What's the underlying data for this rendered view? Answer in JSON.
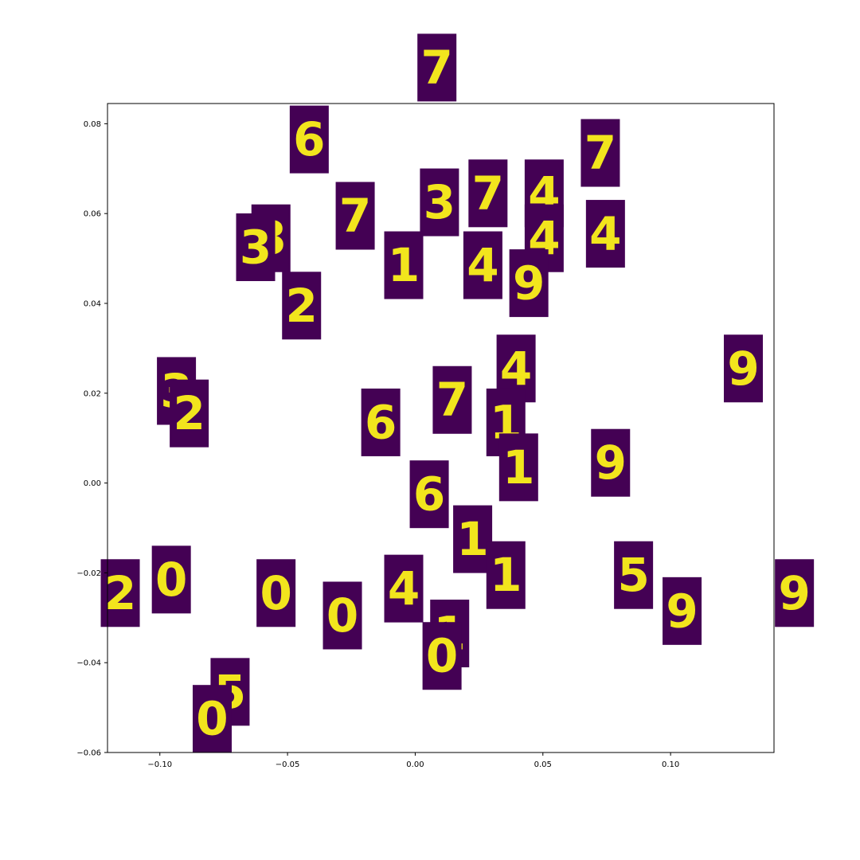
{
  "chart_data": {
    "type": "scatter",
    "title": "",
    "xlabel": "",
    "ylabel": "",
    "xlim": [
      -0.1205,
      0.1405
    ],
    "ylim": [
      -0.06,
      0.0845
    ],
    "grid": false,
    "x_ticks": [
      {
        "value": -0.1,
        "label": "−0.10"
      },
      {
        "value": -0.05,
        "label": "−0.05"
      },
      {
        "value": 0.0,
        "label": "0.00"
      },
      {
        "value": 0.05,
        "label": "0.05"
      },
      {
        "value": 0.1,
        "label": "0.10"
      }
    ],
    "y_ticks": [
      {
        "value": 0.08,
        "label": "0.08"
      },
      {
        "value": 0.06,
        "label": "0.06"
      },
      {
        "value": 0.04,
        "label": "0.04"
      },
      {
        "value": 0.02,
        "label": "0.02"
      },
      {
        "value": 0.0,
        "label": "0.00"
      },
      {
        "value": -0.02,
        "label": "−0.02"
      },
      {
        "value": -0.04,
        "label": "−0.04"
      },
      {
        "value": -0.06,
        "label": "−0.06"
      }
    ],
    "marker": "digit-image",
    "marker_colors": {
      "background": "#440154",
      "stroke": "#fde725"
    },
    "points": [
      {
        "x": 0.0085,
        "y": 0.0925,
        "label": "7"
      },
      {
        "x": -0.0415,
        "y": 0.0765,
        "label": "6"
      },
      {
        "x": 0.0285,
        "y": 0.0645,
        "label": "7"
      },
      {
        "x": 0.0505,
        "y": 0.0645,
        "label": "4"
      },
      {
        "x": 0.0725,
        "y": 0.0735,
        "label": "7"
      },
      {
        "x": 0.0095,
        "y": 0.0625,
        "label": "3"
      },
      {
        "x": -0.0235,
        "y": 0.0595,
        "label": "7"
      },
      {
        "x": -0.0565,
        "y": 0.0545,
        "label": "3"
      },
      {
        "x": -0.0625,
        "y": 0.0525,
        "label": "3"
      },
      {
        "x": 0.0505,
        "y": 0.0545,
        "label": "4"
      },
      {
        "x": 0.0745,
        "y": 0.0555,
        "label": "4"
      },
      {
        "x": -0.0045,
        "y": 0.0485,
        "label": "1"
      },
      {
        "x": 0.0265,
        "y": 0.0485,
        "label": "4"
      },
      {
        "x": 0.0445,
        "y": 0.0445,
        "label": "9"
      },
      {
        "x": -0.0445,
        "y": 0.0395,
        "label": "2"
      },
      {
        "x": 0.0395,
        "y": 0.0255,
        "label": "4"
      },
      {
        "x": 0.1285,
        "y": 0.0255,
        "label": "9"
      },
      {
        "x": -0.0935,
        "y": 0.0205,
        "label": "3"
      },
      {
        "x": -0.0885,
        "y": 0.0155,
        "label": "2"
      },
      {
        "x": 0.0145,
        "y": 0.0185,
        "label": "7"
      },
      {
        "x": 0.0355,
        "y": 0.0135,
        "label": "1"
      },
      {
        "x": -0.0135,
        "y": 0.0135,
        "label": "6"
      },
      {
        "x": 0.0405,
        "y": 0.0035,
        "label": "1"
      },
      {
        "x": 0.0765,
        "y": 0.0045,
        "label": "9"
      },
      {
        "x": 0.0055,
        "y": -0.0025,
        "label": "6"
      },
      {
        "x": 0.0225,
        "y": -0.0125,
        "label": "1"
      },
      {
        "x": 0.0355,
        "y": -0.0205,
        "label": "1"
      },
      {
        "x": 0.0855,
        "y": -0.0205,
        "label": "5"
      },
      {
        "x": -0.0955,
        "y": -0.0215,
        "label": "0"
      },
      {
        "x": -0.1155,
        "y": -0.0245,
        "label": "2"
      },
      {
        "x": -0.0545,
        "y": -0.0245,
        "label": "0"
      },
      {
        "x": -0.0045,
        "y": -0.0235,
        "label": "4"
      },
      {
        "x": 0.1045,
        "y": -0.0285,
        "label": "9"
      },
      {
        "x": 0.1485,
        "y": -0.0245,
        "label": "9"
      },
      {
        "x": -0.0285,
        "y": -0.0295,
        "label": "0"
      },
      {
        "x": 0.0135,
        "y": -0.0335,
        "label": "1"
      },
      {
        "x": 0.0105,
        "y": -0.0385,
        "label": "0"
      },
      {
        "x": -0.0725,
        "y": -0.0465,
        "label": "5"
      },
      {
        "x": -0.0795,
        "y": -0.0525,
        "label": "0"
      }
    ]
  }
}
